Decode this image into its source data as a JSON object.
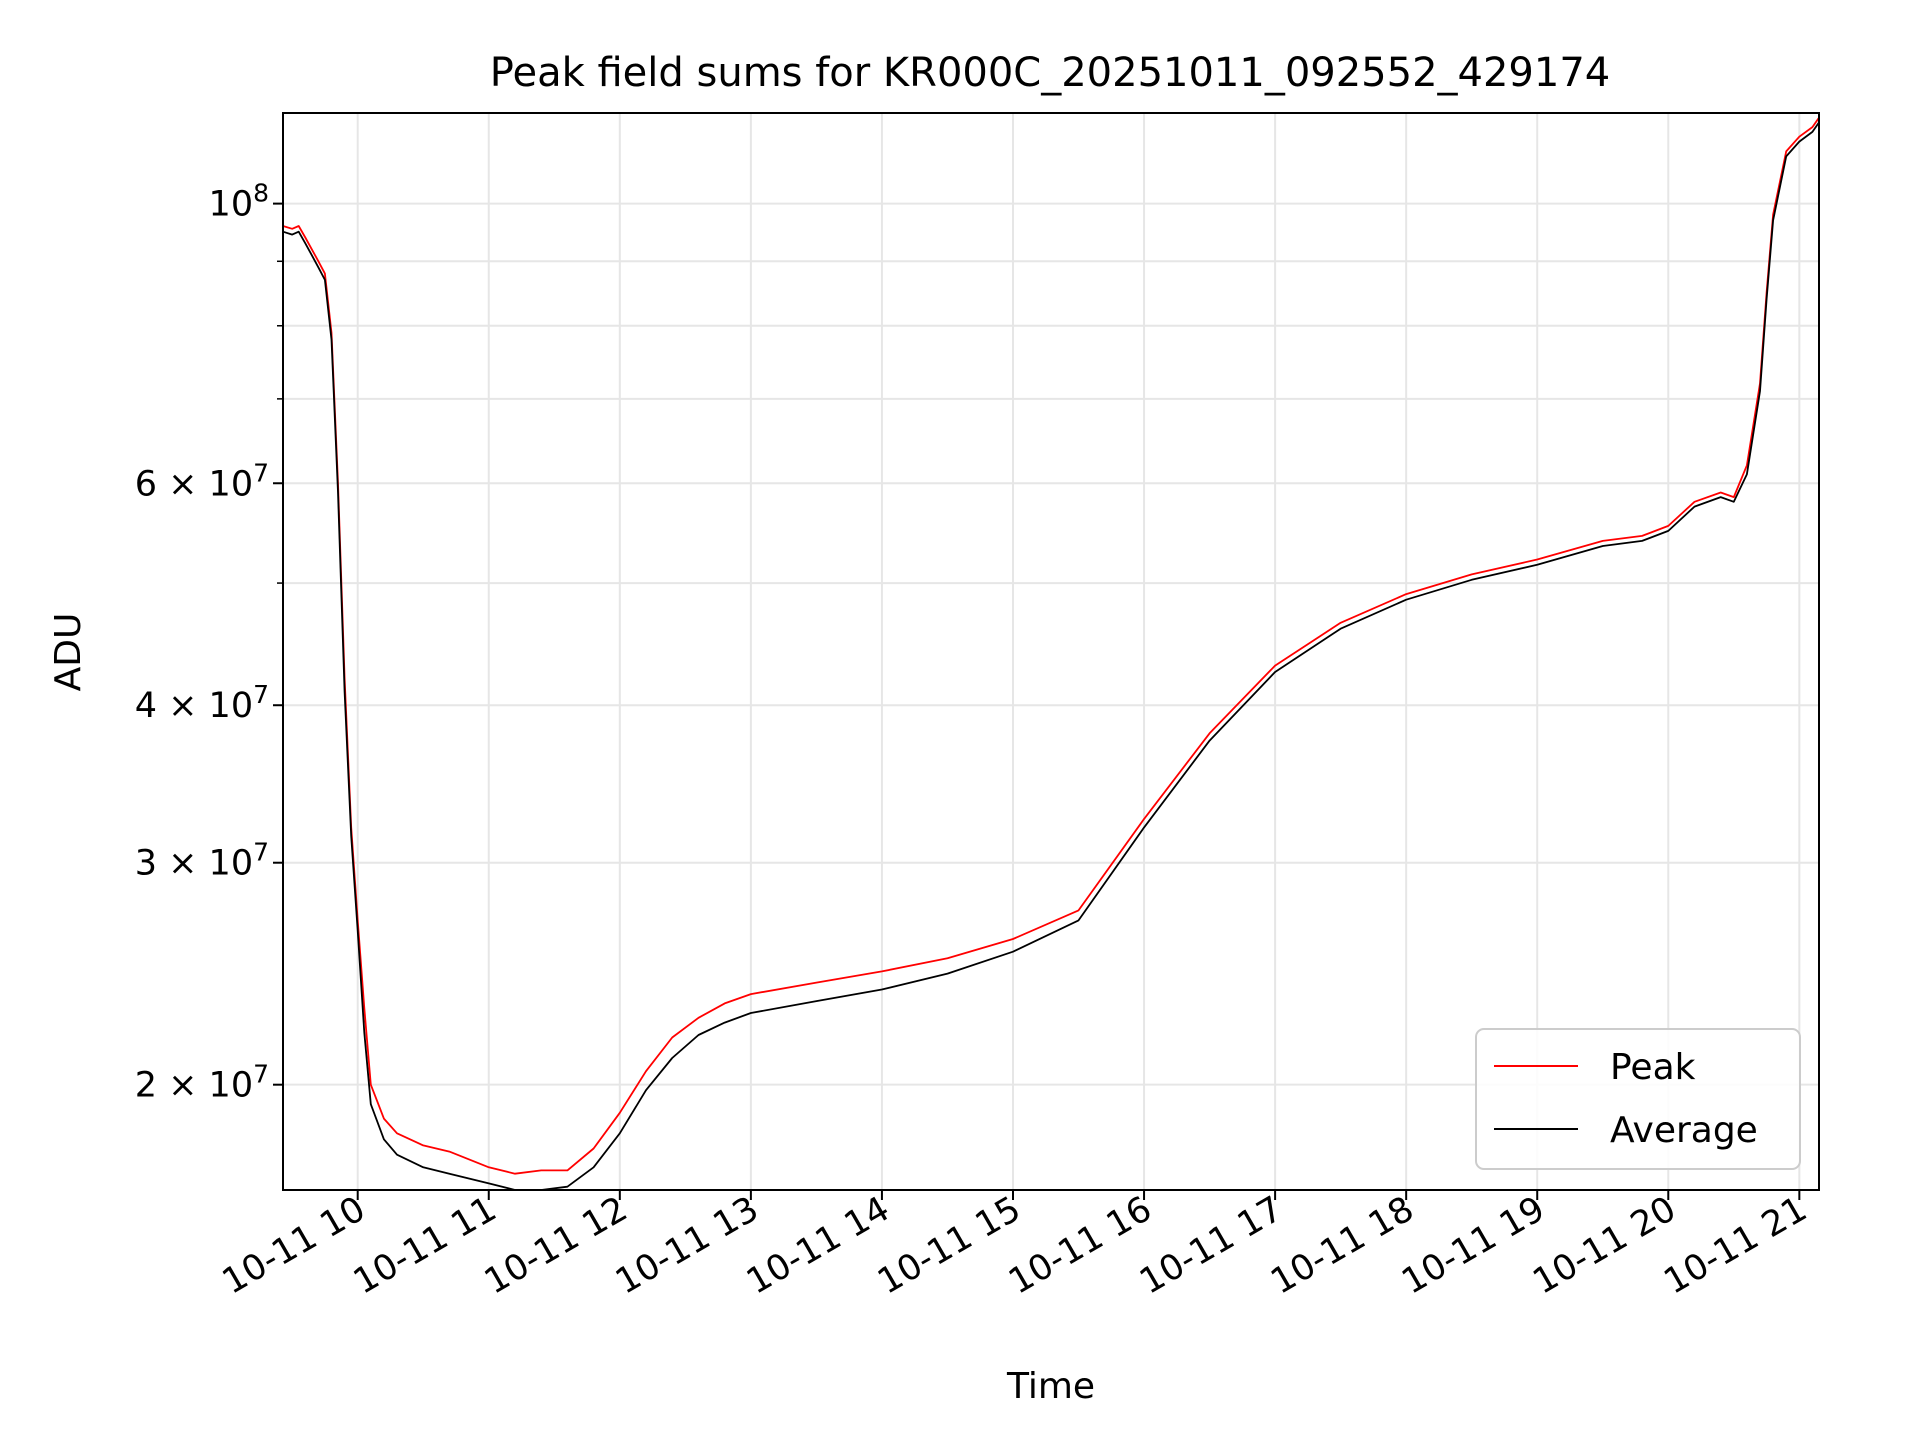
{
  "chart_data": {
    "type": "line",
    "title": "Peak field sums for KR000C_20251011_092552_429174",
    "xlabel": "Time",
    "ylabel": "ADU",
    "x_unit": "hours since 10-11 00:00",
    "xlim": [
      9.43,
      21.15
    ],
    "ylim": [
      16500000,
      118000000
    ],
    "yscale": "log",
    "grid": true,
    "legend_position": "lower-right",
    "xticks": [
      {
        "value": 10,
        "label": "10-11 10"
      },
      {
        "value": 11,
        "label": "10-11 11"
      },
      {
        "value": 12,
        "label": "10-11 12"
      },
      {
        "value": 13,
        "label": "10-11 13"
      },
      {
        "value": 14,
        "label": "10-11 14"
      },
      {
        "value": 15,
        "label": "10-11 15"
      },
      {
        "value": 16,
        "label": "10-11 16"
      },
      {
        "value": 17,
        "label": "10-11 17"
      },
      {
        "value": 18,
        "label": "10-11 18"
      },
      {
        "value": 19,
        "label": "10-11 19"
      },
      {
        "value": 20,
        "label": "10-11 20"
      },
      {
        "value": 21,
        "label": "10-11 21"
      }
    ],
    "yticks": [
      {
        "value": 20000000,
        "base": "2 × 10",
        "exp": "7"
      },
      {
        "value": 30000000,
        "base": "3 × 10",
        "exp": "7"
      },
      {
        "value": 40000000,
        "base": "4 × 10",
        "exp": "7"
      },
      {
        "value": 60000000,
        "base": "6 × 10",
        "exp": "7"
      },
      {
        "value": 100000000,
        "base": "10",
        "exp": "8"
      }
    ],
    "yminor": [
      50000000,
      70000000,
      80000000,
      90000000
    ],
    "series": [
      {
        "name": "Peak",
        "color": "#ff0000",
        "x": [
          9.43,
          9.5,
          9.55,
          9.6,
          9.65,
          9.7,
          9.75,
          9.8,
          9.85,
          9.9,
          9.95,
          10.0,
          10.05,
          10.1,
          10.2,
          10.3,
          10.5,
          10.7,
          11.0,
          11.2,
          11.4,
          11.6,
          11.8,
          12.0,
          12.2,
          12.4,
          12.6,
          12.8,
          13.0,
          13.5,
          14.0,
          14.5,
          15.0,
          15.5,
          16.0,
          16.5,
          17.0,
          17.5,
          18.0,
          18.5,
          19.0,
          19.5,
          19.8,
          20.0,
          20.2,
          20.4,
          20.5,
          20.6,
          20.7,
          20.75,
          20.8,
          20.9,
          21.0,
          21.1,
          21.15
        ],
        "y": [
          96000000,
          95500000,
          96000000,
          94000000,
          92000000,
          90000000,
          88000000,
          79000000,
          60000000,
          42000000,
          32000000,
          27000000,
          23000000,
          20000000,
          18800000,
          18300000,
          17900000,
          17700000,
          17200000,
          17000000,
          17100000,
          17100000,
          17800000,
          19000000,
          20500000,
          21800000,
          22600000,
          23200000,
          23600000,
          24100000,
          24600000,
          25200000,
          26100000,
          27500000,
          32500000,
          38000000,
          43000000,
          46500000,
          49000000,
          50800000,
          52200000,
          54000000,
          54500000,
          55500000,
          58000000,
          59000000,
          58500000,
          62000000,
          72000000,
          85000000,
          98000000,
          110000000,
          113000000,
          115000000,
          117000000
        ]
      },
      {
        "name": "Average",
        "color": "#000000",
        "x": [
          9.43,
          9.5,
          9.55,
          9.6,
          9.65,
          9.7,
          9.75,
          9.8,
          9.85,
          9.9,
          9.95,
          10.0,
          10.05,
          10.1,
          10.2,
          10.3,
          10.5,
          10.7,
          11.0,
          11.2,
          11.4,
          11.6,
          11.8,
          12.0,
          12.2,
          12.4,
          12.6,
          12.8,
          13.0,
          13.5,
          14.0,
          14.5,
          15.0,
          15.5,
          16.0,
          16.5,
          17.0,
          17.5,
          18.0,
          18.5,
          19.0,
          19.5,
          19.8,
          20.0,
          20.2,
          20.4,
          20.5,
          20.6,
          20.7,
          20.75,
          20.8,
          20.9,
          21.0,
          21.1,
          21.15
        ],
        "y": [
          95000000,
          94500000,
          95000000,
          93000000,
          91000000,
          89000000,
          87000000,
          78000000,
          59000000,
          41000000,
          31500000,
          26500000,
          22000000,
          19300000,
          18100000,
          17600000,
          17200000,
          17000000,
          16700000,
          16500000,
          16500000,
          16600000,
          17200000,
          18300000,
          19800000,
          21000000,
          21900000,
          22400000,
          22800000,
          23300000,
          23800000,
          24500000,
          25500000,
          27000000,
          32000000,
          37500000,
          42500000,
          46000000,
          48500000,
          50300000,
          51700000,
          53500000,
          54000000,
          55000000,
          57500000,
          58500000,
          58000000,
          61000000,
          71000000,
          84000000,
          97000000,
          109000000,
          112000000,
          114000000,
          116000000
        ]
      }
    ]
  }
}
